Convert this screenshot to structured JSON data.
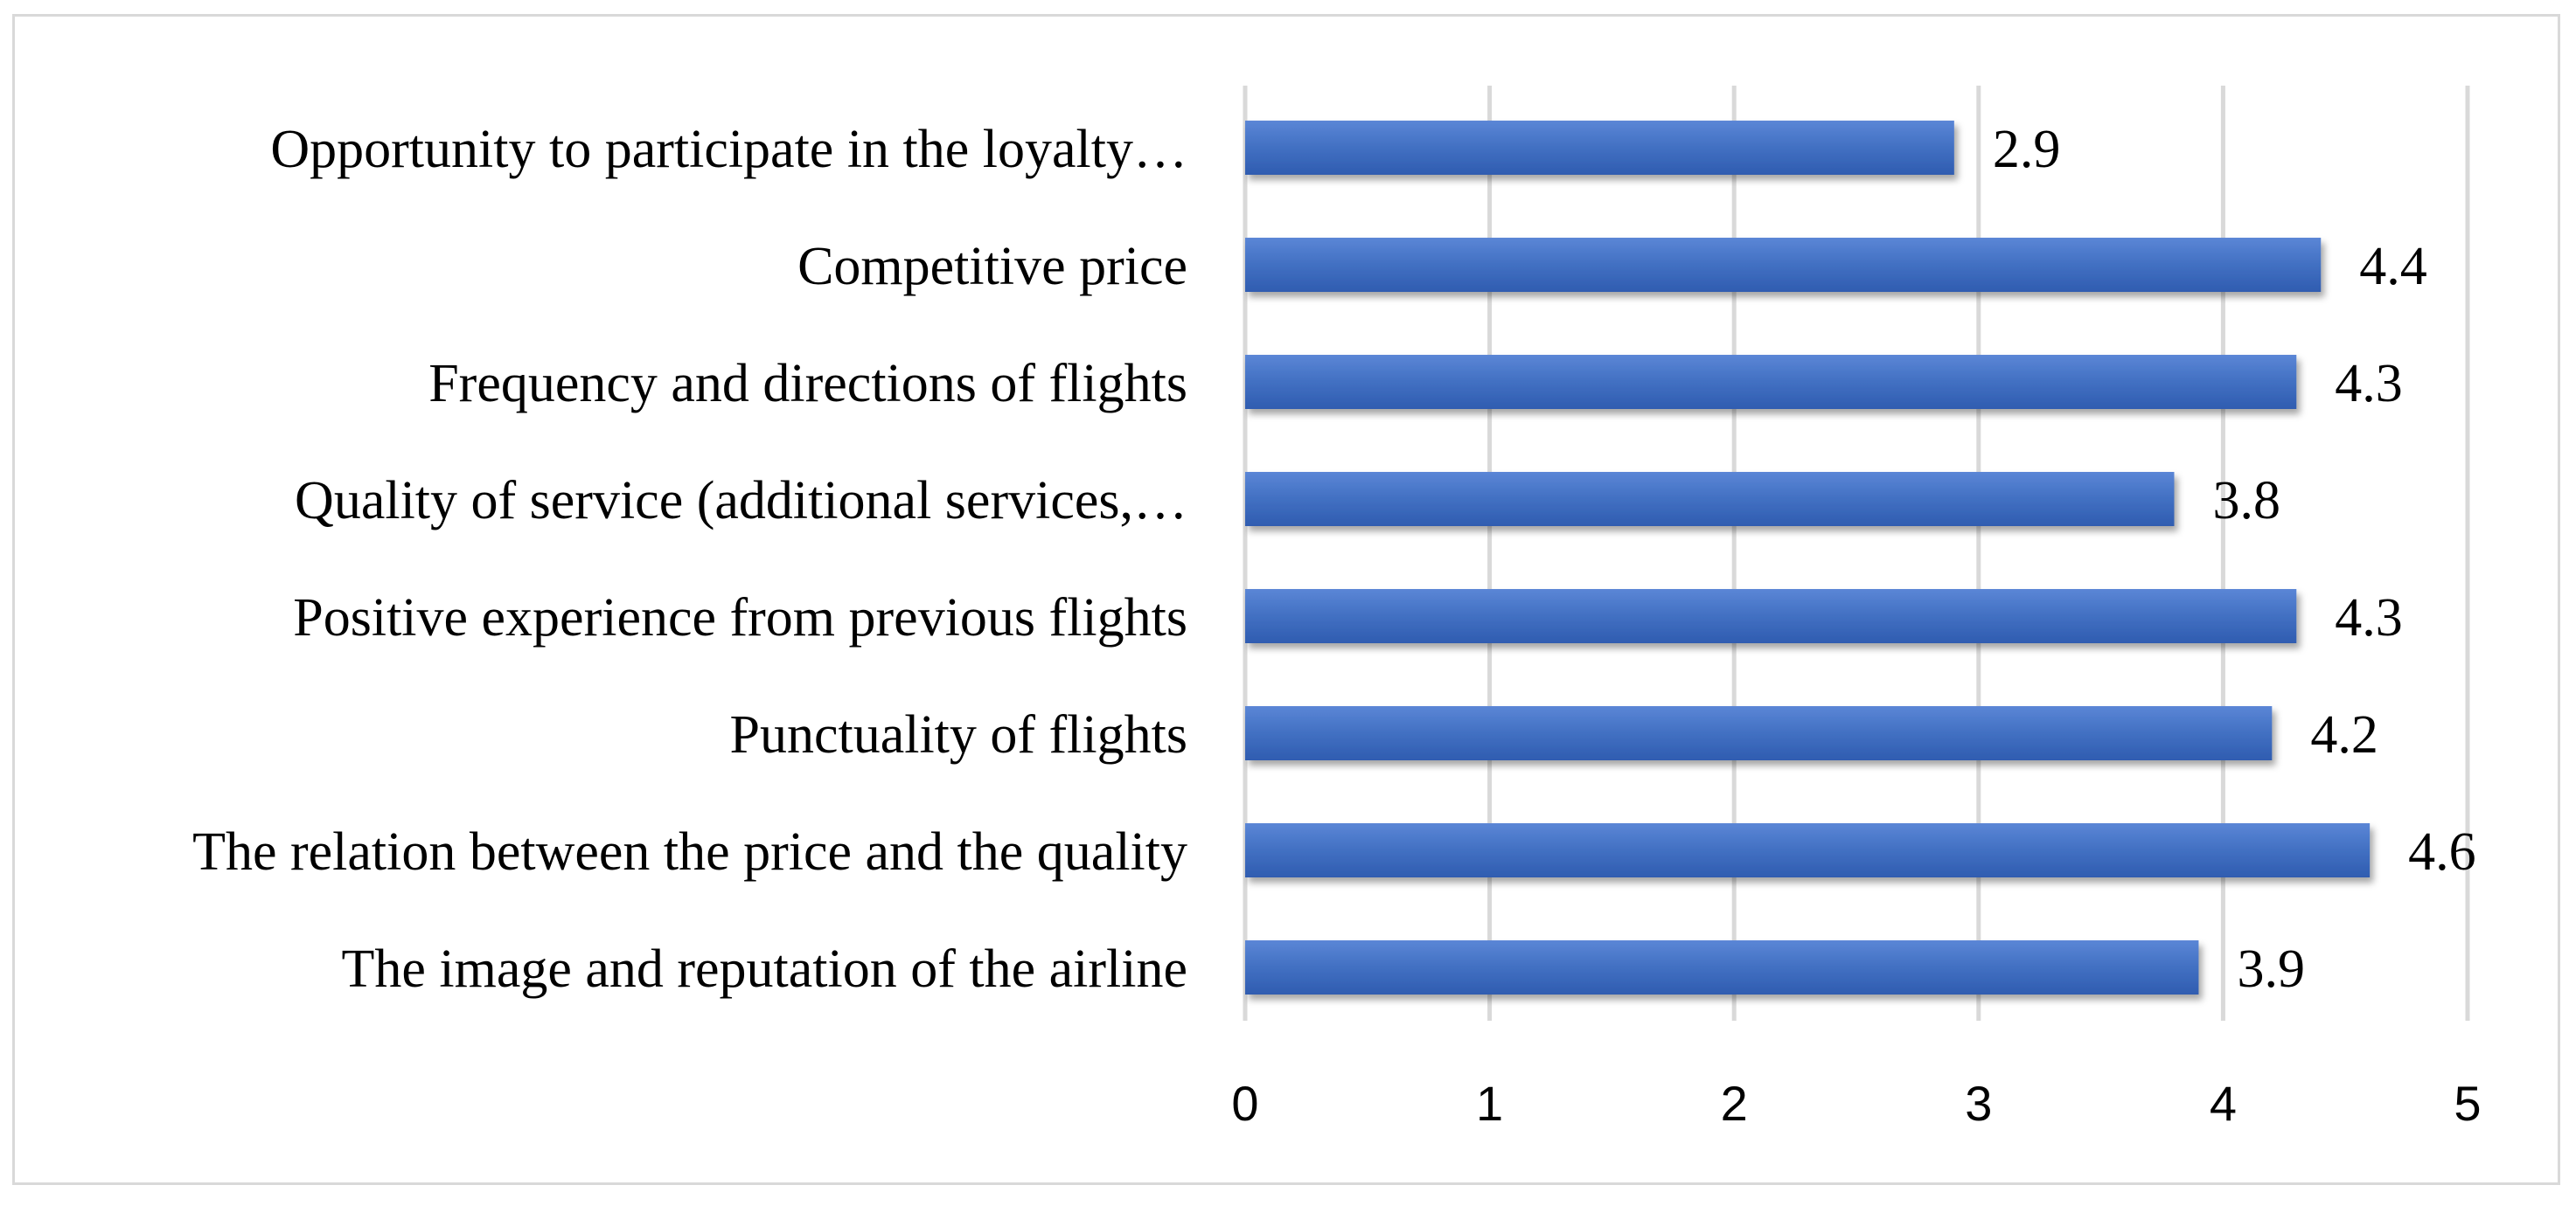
{
  "chart_data": {
    "type": "bar",
    "orientation": "horizontal",
    "categories": [
      "Opportunity to participate in the loyalty…",
      "Competitive price",
      "Frequency and directions of flights",
      "Quality of service (additional services,…",
      "Positive experience from previous flights",
      "Punctuality of flights",
      "The relation between the price and the quality",
      "The image and reputation of the airline"
    ],
    "values": [
      2.9,
      4.4,
      4.3,
      3.8,
      4.3,
      4.2,
      4.6,
      3.9
    ],
    "value_labels": [
      "2.9",
      "4.4",
      "4.3",
      "3.8",
      "4.3",
      "4.2",
      "4.6",
      "3.9"
    ],
    "xlim": [
      0,
      5
    ],
    "x_ticks": [
      "0",
      "1",
      "2",
      "3",
      "4",
      "5"
    ],
    "title": "",
    "xlabel": "",
    "ylabel": "",
    "grid": true,
    "legend": "none",
    "colors": {
      "bar": "#4472c4",
      "bar_light": "#5b86d6",
      "bar_dark": "#2f5cb0",
      "grid": "#d9d9d9",
      "border": "#d9d9d9",
      "text": "#000000"
    }
  }
}
